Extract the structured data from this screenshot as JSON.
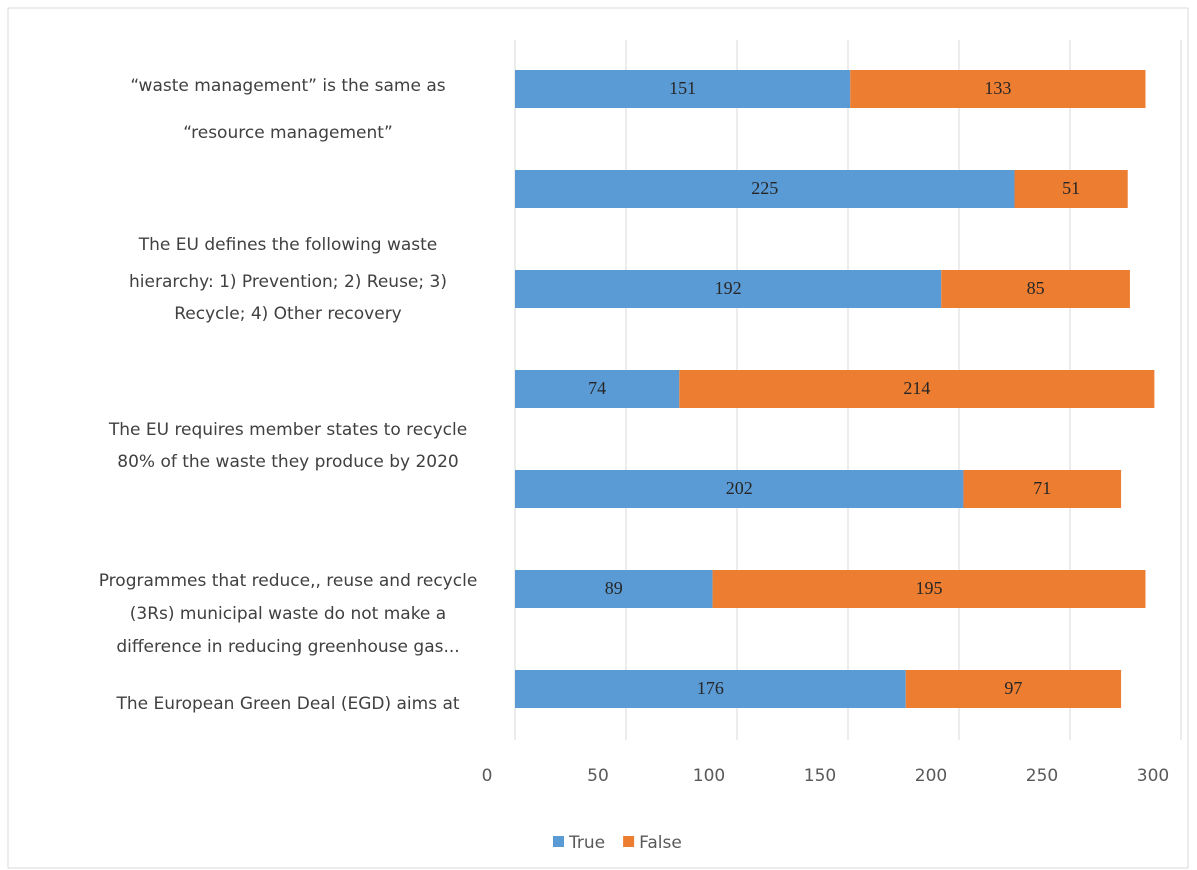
{
  "chart_data": {
    "type": "stacked-bar-horizontal",
    "categories": [
      [
        "“waste management” is the same as",
        "“resource management”"
      ],
      null,
      [
        "The EU defines the following waste",
        "hierarchy: 1) Prevention;  2) Reuse; 3)",
        "Recycle; 4) Other recovery"
      ],
      null,
      [
        "The EU requires member states to recycle",
        "80% of the waste they produce by 2020"
      ],
      [
        "Programmes that reduce,, reuse and recycle",
        "(3Rs) municipal waste do not make a",
        "difference in reducing greenhouse gas..."
      ],
      [
        "The European Green Deal (EGD) aims at"
      ]
    ],
    "series": [
      {
        "name": "True",
        "color": "#5b9bd5",
        "values": [
          151,
          225,
          192,
          74,
          202,
          89,
          176
        ]
      },
      {
        "name": "False",
        "color": "#ed7d31",
        "values": [
          133,
          51,
          85,
          214,
          71,
          195,
          97
        ]
      }
    ],
    "xlim": [
      0,
      300
    ],
    "xticks": [
      0,
      50,
      100,
      150,
      200,
      250,
      300
    ],
    "grid": true,
    "legend": "bottom"
  }
}
